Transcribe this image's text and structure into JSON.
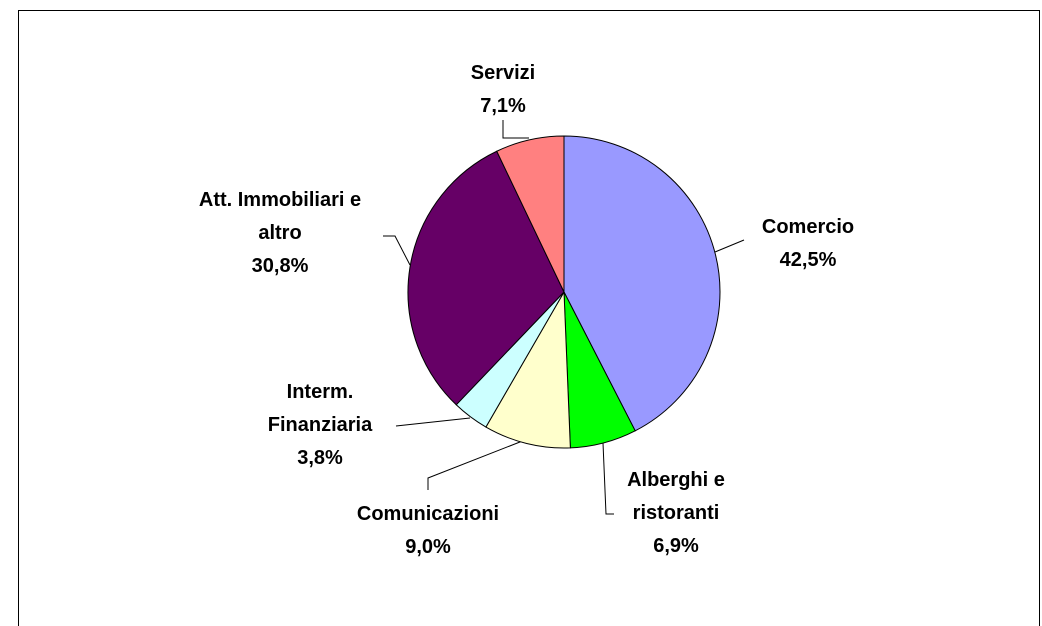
{
  "chart_data": {
    "type": "pie",
    "categories": [
      "Comercio",
      "Alberghi e ristoranti",
      "Comunicazioni",
      "Interm. Finanziaria",
      "Att. Immobiliari e altro",
      "Servizi"
    ],
    "values": [
      42.5,
      6.9,
      9.0,
      3.8,
      30.8,
      7.1
    ],
    "value_labels": [
      "42,5%",
      "6,9%",
      "9,0%",
      "3,8%",
      "30,8%",
      "7,1%"
    ],
    "colors": [
      "#9999ff",
      "#00ff00",
      "#ffffcc",
      "#ccffff",
      "#660066",
      "#ff8080"
    ]
  }
}
